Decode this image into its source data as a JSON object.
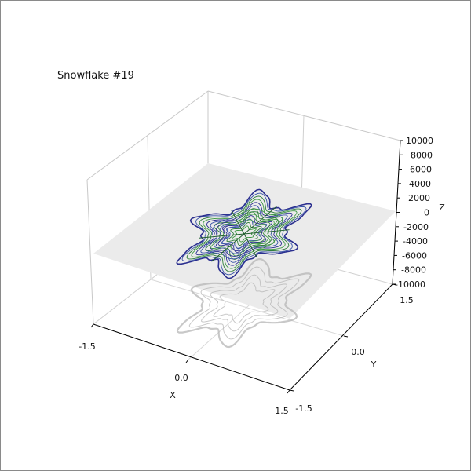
{
  "chart_data": {
    "type": "3d-contour",
    "title": "Snowflake #19",
    "xlabel": "X",
    "ylabel": "Y",
    "zlabel": "Z",
    "xlim": [
      -1.5,
      1.5
    ],
    "ylim": [
      -1.5,
      1.5
    ],
    "zlim": [
      -10000,
      10000
    ],
    "x_ticks": [
      "-1.5",
      "0.0",
      "1.5"
    ],
    "y_ticks": [
      "-1.5",
      "0.0",
      "1.5"
    ],
    "z_ticks": [
      "-10000",
      "-8000",
      "-6000",
      "-4000",
      "-2000",
      "0",
      "2000",
      "4000",
      "6000",
      "8000",
      "10000"
    ],
    "grid": true,
    "pane_color": "#ffffff",
    "plane_color": "#ebebeb",
    "projection_shadow_color": "#b5b5b5",
    "colormap": [
      "#2b2f8f",
      "#3a55a8",
      "#2e7d3b",
      "#3f9a45"
    ]
  }
}
